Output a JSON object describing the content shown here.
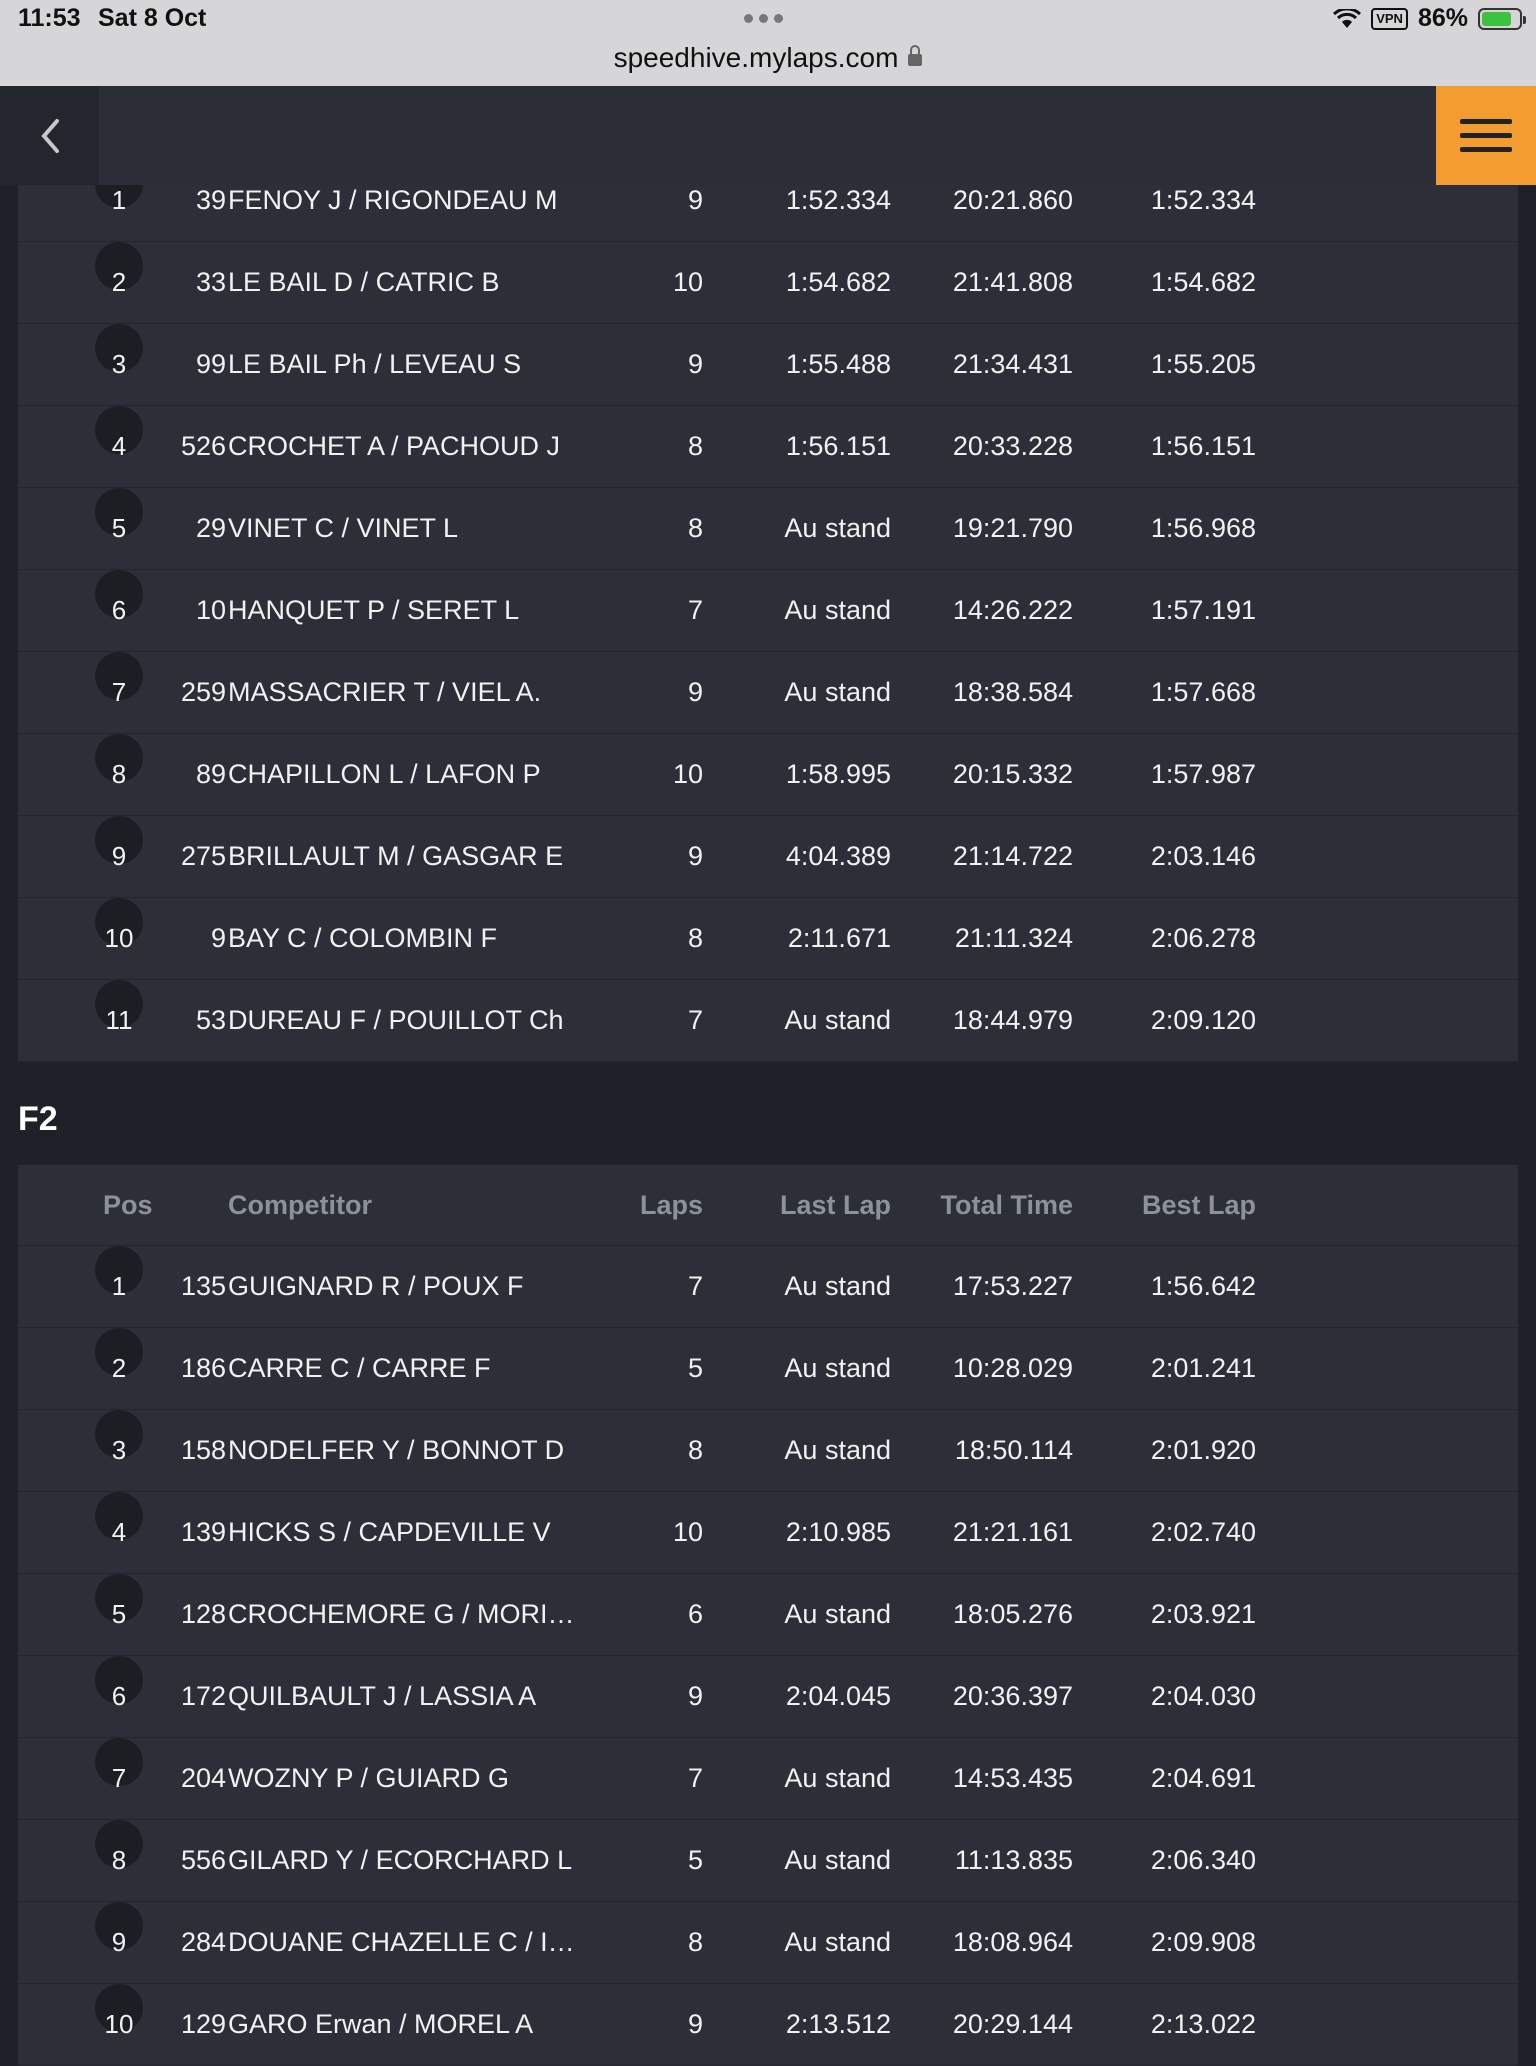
{
  "status_bar": {
    "time": "11:53",
    "date": "Sat 8 Oct",
    "vpn": "VPN",
    "battery": "86%"
  },
  "browser": {
    "url": "speedhive.mylaps.com"
  },
  "icons": {
    "back": "chevron-left-icon",
    "menu": "hamburger-menu-icon",
    "lock": "lock-icon",
    "wifi": "wifi-icon",
    "battery": "battery-charging-icon"
  },
  "colors": {
    "accent": "#f39c2f",
    "background": "#1e2128",
    "panel": "#2c2f37"
  },
  "class1": {
    "rows": [
      {
        "pos": "1",
        "num": "39",
        "name": "FENOY J / RIGONDEAU M",
        "laps": "9",
        "last": "1:52.334",
        "total": "20:21.860",
        "best": "1:52.334"
      },
      {
        "pos": "2",
        "num": "33",
        "name": "LE BAIL D / CATRIC B",
        "laps": "10",
        "last": "1:54.682",
        "total": "21:41.808",
        "best": "1:54.682"
      },
      {
        "pos": "3",
        "num": "99",
        "name": "LE BAIL Ph / LEVEAU S",
        "laps": "9",
        "last": "1:55.488",
        "total": "21:34.431",
        "best": "1:55.205"
      },
      {
        "pos": "4",
        "num": "526",
        "name": "CROCHET A / PACHOUD J",
        "laps": "8",
        "last": "1:56.151",
        "total": "20:33.228",
        "best": "1:56.151"
      },
      {
        "pos": "5",
        "num": "29",
        "name": "VINET C / VINET L",
        "laps": "8",
        "last": "Au stand",
        "total": "19:21.790",
        "best": "1:56.968"
      },
      {
        "pos": "6",
        "num": "10",
        "name": "HANQUET P / SERET L",
        "laps": "7",
        "last": "Au stand",
        "total": "14:26.222",
        "best": "1:57.191"
      },
      {
        "pos": "7",
        "num": "259",
        "name": "MASSACRIER T / VIEL A.",
        "laps": "9",
        "last": "Au stand",
        "total": "18:38.584",
        "best": "1:57.668"
      },
      {
        "pos": "8",
        "num": "89",
        "name": "CHAPILLON L / LAFON P",
        "laps": "10",
        "last": "1:58.995",
        "total": "20:15.332",
        "best": "1:57.987"
      },
      {
        "pos": "9",
        "num": "275",
        "name": "BRILLAULT M / GASGAR E",
        "laps": "9",
        "last": "4:04.389",
        "total": "21:14.722",
        "best": "2:03.146"
      },
      {
        "pos": "10",
        "num": "9",
        "name": "BAY C / COLOMBIN F",
        "laps": "8",
        "last": "2:11.671",
        "total": "21:11.324",
        "best": "2:06.278"
      },
      {
        "pos": "11",
        "num": "53",
        "name": "DUREAU F / POUILLOT Ch",
        "laps": "7",
        "last": "Au stand",
        "total": "18:44.979",
        "best": "2:09.120"
      }
    ]
  },
  "class2": {
    "title": "F2",
    "headers": {
      "pos": "Pos",
      "competitor": "Competitor",
      "laps": "Laps",
      "last": "Last Lap",
      "total": "Total Time",
      "best": "Best Lap"
    },
    "rows": [
      {
        "pos": "1",
        "num": "135",
        "name": "GUIGNARD R / POUX F",
        "laps": "7",
        "last": "Au stand",
        "total": "17:53.227",
        "best": "1:56.642"
      },
      {
        "pos": "2",
        "num": "186",
        "name": "CARRE C / CARRE F",
        "laps": "5",
        "last": "Au stand",
        "total": "10:28.029",
        "best": "2:01.241"
      },
      {
        "pos": "3",
        "num": "158",
        "name": "NODELFER Y / BONNOT D",
        "laps": "8",
        "last": "Au stand",
        "total": "18:50.114",
        "best": "2:01.920"
      },
      {
        "pos": "4",
        "num": "139",
        "name": "HICKS S / CAPDEVILLE V",
        "laps": "10",
        "last": "2:10.985",
        "total": "21:21.161",
        "best": "2:02.740"
      },
      {
        "pos": "5",
        "num": "128",
        "name": "CROCHEMORE G / MORI…",
        "laps": "6",
        "last": "Au stand",
        "total": "18:05.276",
        "best": "2:03.921"
      },
      {
        "pos": "6",
        "num": "172",
        "name": "QUILBAULT J / LASSIA A",
        "laps": "9",
        "last": "2:04.045",
        "total": "20:36.397",
        "best": "2:04.030"
      },
      {
        "pos": "7",
        "num": "204",
        "name": "WOZNY P / GUIARD G",
        "laps": "7",
        "last": "Au stand",
        "total": "14:53.435",
        "best": "2:04.691"
      },
      {
        "pos": "8",
        "num": "556",
        "name": "GILARD Y / ECORCHARD L",
        "laps": "5",
        "last": "Au stand",
        "total": "11:13.835",
        "best": "2:06.340"
      },
      {
        "pos": "9",
        "num": "284",
        "name": "DOUANE CHAZELLE C / I…",
        "laps": "8",
        "last": "Au stand",
        "total": "18:08.964",
        "best": "2:09.908"
      },
      {
        "pos": "10",
        "num": "129",
        "name": "GARO Erwan / MOREL A",
        "laps": "9",
        "last": "2:13.512",
        "total": "20:29.144",
        "best": "2:13.022"
      }
    ]
  }
}
